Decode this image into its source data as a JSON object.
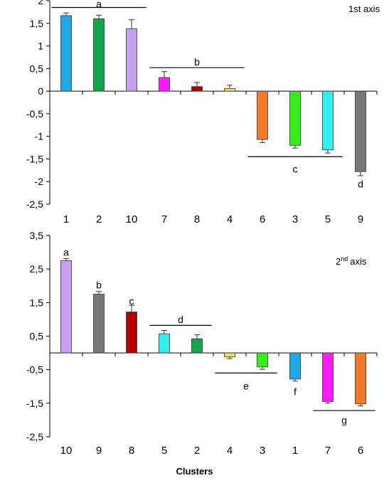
{
  "xlabel": "Clusters",
  "chart_data": [
    {
      "type": "bar",
      "axis_label": "1st axis",
      "ylim": [
        -2.5,
        2
      ],
      "ytick_labels": [
        "2",
        "1,5",
        "1",
        "0,5",
        "0",
        "-0,5",
        "-1",
        "-1,5",
        "-2",
        "-2,5"
      ],
      "ytick_values": [
        2,
        1.5,
        1,
        0.5,
        0,
        -0.5,
        -1,
        -1.5,
        -2,
        -2.5
      ],
      "categories": [
        "1",
        "2",
        "10",
        "7",
        "8",
        "4",
        "6",
        "3",
        "5",
        "9"
      ],
      "values": [
        1.67,
        1.6,
        1.38,
        0.3,
        0.1,
        0.06,
        -1.07,
        -1.2,
        -1.3,
        -1.78
      ],
      "errors": [
        0.06,
        0.08,
        0.2,
        0.13,
        0.09,
        0.07,
        0.07,
        0.06,
        0.07,
        0.09
      ],
      "colors": [
        "#1fa8e8",
        "#10a64a",
        "#c7a0f0",
        "#ff19ff",
        "#b30000",
        "#f0e050",
        "#f07a2a",
        "#33ee1a",
        "#33eeee",
        "#777777"
      ],
      "groups": [
        {
          "label": "a",
          "from": 0,
          "to": 2,
          "line_y": 1.85,
          "label_y": 1.93
        },
        {
          "label": "b",
          "from": 3,
          "to": 5,
          "line_y": 0.52,
          "label_y": 0.65
        },
        {
          "label": "c",
          "from": 6,
          "to": 8,
          "line_y": -1.45,
          "label_y": -1.72
        },
        {
          "label": "d",
          "from": 9,
          "to": 9,
          "line_y": null,
          "label_y": -2.05
        }
      ]
    },
    {
      "type": "bar",
      "axis_label": "axis",
      "axis_label_prefix": "2",
      "axis_label_sup": "nd",
      "ylim": [
        -2.5,
        3.5
      ],
      "ytick_labels": [
        "3,5",
        "2,5",
        "1,5",
        "0,5",
        "-0,5",
        "-1,5",
        "-2,5"
      ],
      "ytick_values": [
        3.5,
        2.5,
        1.5,
        0.5,
        -0.5,
        -1.5,
        -2.5
      ],
      "categories": [
        "10",
        "9",
        "8",
        "5",
        "2",
        "4",
        "3",
        "1",
        "7",
        "6"
      ],
      "values": [
        2.75,
        1.75,
        1.22,
        0.57,
        0.42,
        -0.12,
        -0.42,
        -0.78,
        -1.45,
        -1.52
      ],
      "errors": [
        0.06,
        0.08,
        0.2,
        0.1,
        0.12,
        0.05,
        0.07,
        0.06,
        0.05,
        0.06
      ],
      "colors": [
        "#c7a0f0",
        "#777777",
        "#b30000",
        "#33eeee",
        "#10a64a",
        "#f0e050",
        "#33ee1a",
        "#1fa8e8",
        "#ff19ff",
        "#f07a2a"
      ],
      "groups": [
        {
          "label": "a",
          "from": 0,
          "to": 0,
          "line_y": null,
          "label_y": 3.0
        },
        {
          "label": "b",
          "from": 1,
          "to": 1,
          "line_y": null,
          "label_y": 2.03
        },
        {
          "label": "c",
          "from": 2,
          "to": 2,
          "line_y": null,
          "label_y": 1.55
        },
        {
          "label": "d",
          "from": 3,
          "to": 4,
          "line_y": 0.82,
          "label_y": 1.0
        },
        {
          "label": "e",
          "from": 5,
          "to": 6,
          "line_y": -0.6,
          "label_y": -0.98
        },
        {
          "label": "f",
          "from": 7,
          "to": 7,
          "line_y": null,
          "label_y": -1.15
        },
        {
          "label": "g",
          "from": 8,
          "to": 9,
          "line_y": -1.72,
          "label_y": -2.0
        }
      ]
    }
  ]
}
